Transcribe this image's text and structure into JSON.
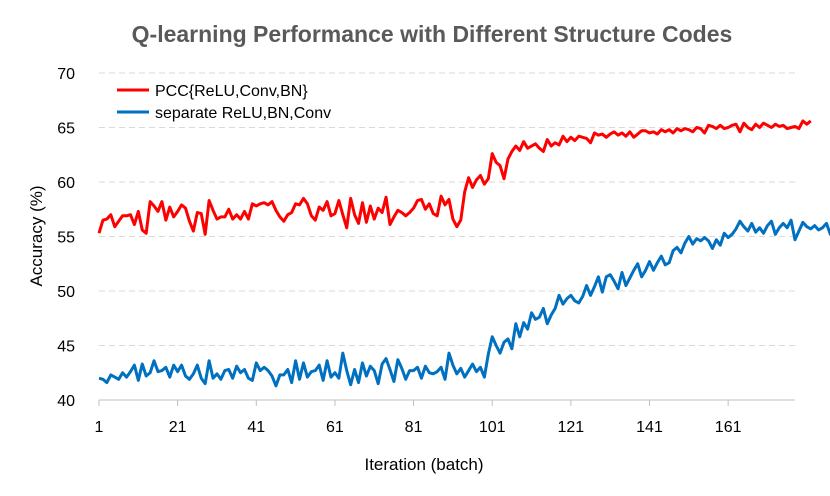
{
  "chart_data": {
    "type": "line",
    "title": "Q-learning Performance with Different Structure Codes",
    "xlabel": "Iteration (batch)",
    "ylabel": "Accuracy (%)",
    "xlim": [
      1,
      178
    ],
    "ylim": [
      40,
      70
    ],
    "xticks": [
      1,
      21,
      41,
      61,
      81,
      101,
      121,
      141,
      161
    ],
    "yticks": [
      40,
      45,
      50,
      55,
      60,
      65,
      70
    ],
    "grid": "horizontal dashed",
    "legend_position": "top-left",
    "series": [
      {
        "name": "PCC{ReLU,Conv,BN}",
        "color": "#ff0000",
        "values": [
          55.3,
          56.5,
          56.6,
          57.0,
          55.9,
          56.4,
          56.9,
          56.9,
          57.0,
          56.1,
          57.3,
          55.6,
          55.3,
          58.2,
          57.8,
          57.3,
          58.2,
          56.5,
          57.7,
          56.8,
          57.3,
          57.9,
          57.6,
          56.4,
          55.5,
          57.2,
          57.1,
          55.2,
          58.3,
          57.4,
          56.6,
          56.8,
          56.8,
          57.5,
          56.6,
          57.0,
          56.6,
          57.3,
          56.6,
          58.0,
          57.8,
          58.0,
          58.1,
          57.9,
          58.2,
          57.4,
          56.8,
          56.4,
          57.0,
          57.2,
          58.0,
          57.9,
          58.5,
          58.0,
          56.9,
          56.5,
          57.7,
          57.4,
          58.2,
          56.9,
          57.1,
          58.3,
          57.0,
          55.8,
          58.5,
          57.0,
          56.2,
          58.1,
          56.3,
          57.8,
          56.6,
          57.6,
          57.2,
          58.6,
          56.1,
          56.8,
          57.4,
          57.2,
          56.9,
          57.2,
          57.6,
          58.3,
          58.4,
          57.5,
          58.0,
          57.1,
          56.9,
          58.7,
          57.9,
          58.4,
          56.6,
          55.9,
          56.5,
          59.1,
          60.4,
          59.5,
          60.2,
          60.6,
          59.8,
          60.3,
          62.6,
          61.8,
          61.5,
          60.3,
          62.1,
          62.8,
          63.3,
          62.9,
          63.7,
          63.1,
          63.3,
          63.5,
          63.1,
          62.8,
          63.9,
          63.3,
          63.6,
          63.4,
          64.2,
          63.7,
          64.1,
          63.8,
          64.2,
          64.1,
          64.0,
          63.6,
          64.5,
          64.3,
          64.4,
          64.1,
          64.4,
          64.6,
          64.3,
          64.5,
          64.2,
          64.6,
          64.1,
          64.4,
          64.7,
          64.7,
          64.5,
          64.6,
          64.4,
          64.8,
          64.6,
          64.8,
          64.5,
          64.9,
          64.7,
          64.9,
          64.8,
          64.6,
          65.0,
          64.9,
          64.5,
          65.2,
          65.1,
          64.9,
          65.2,
          64.9,
          65.0,
          65.2,
          65.3,
          64.6,
          65.4,
          65.0,
          64.8,
          65.3,
          65.0,
          65.4,
          65.2,
          65.0,
          65.3,
          65.1,
          65.2,
          64.9,
          65.0,
          65.1,
          64.9,
          65.6,
          65.3,
          65.6
        ]
      },
      {
        "name": "separate ReLU,BN,Conv",
        "color": "#0070c0",
        "values": [
          42.0,
          41.9,
          41.6,
          42.3,
          42.1,
          41.9,
          42.5,
          42.1,
          42.6,
          43.2,
          41.8,
          43.3,
          42.2,
          42.5,
          43.6,
          42.6,
          42.7,
          43.0,
          42.1,
          43.2,
          42.6,
          43.2,
          42.2,
          41.9,
          42.4,
          43.2,
          42.0,
          41.5,
          43.6,
          42.0,
          42.4,
          41.9,
          42.7,
          42.8,
          42.0,
          43.1,
          42.5,
          42.8,
          42.0,
          41.8,
          43.4,
          42.7,
          43.0,
          42.7,
          42.2,
          41.3,
          42.3,
          42.3,
          42.8,
          41.6,
          43.6,
          41.9,
          43.4,
          42.1,
          42.6,
          42.7,
          43.2,
          41.8,
          43.6,
          42.1,
          42.5,
          42.0,
          44.3,
          42.7,
          41.4,
          42.8,
          41.6,
          43.4,
          42.2,
          43.1,
          42.7,
          41.5,
          43.3,
          43.8,
          42.8,
          41.7,
          43.7,
          42.9,
          41.9,
          42.7,
          42.7,
          43.0,
          42.0,
          43.1,
          42.5,
          42.4,
          42.6,
          43.0,
          41.9,
          44.3,
          43.2,
          42.4,
          42.9,
          42.1,
          42.7,
          43.3,
          42.6,
          43.0,
          42.1,
          44.2,
          45.8,
          45.0,
          44.3,
          45.3,
          45.6,
          44.7,
          47.0,
          45.8,
          47.1,
          46.5,
          48.0,
          47.4,
          47.6,
          48.4,
          47.0,
          47.8,
          48.4,
          49.6,
          48.8,
          49.3,
          49.6,
          49.1,
          48.9,
          49.5,
          50.5,
          49.6,
          50.4,
          51.3,
          49.9,
          51.3,
          51.5,
          50.9,
          50.2,
          51.7,
          50.5,
          51.2,
          51.9,
          52.5,
          51.3,
          51.9,
          52.7,
          51.9,
          52.6,
          53.2,
          52.4,
          52.6,
          53.7,
          54.0,
          53.5,
          54.4,
          55.0,
          54.3,
          54.8,
          54.6,
          54.9,
          54.6,
          53.9,
          54.7,
          54.2,
          55.3,
          54.9,
          55.2,
          55.7,
          56.4,
          55.9,
          55.5,
          56.2,
          55.4,
          55.8,
          55.3,
          56.0,
          56.4,
          55.2,
          55.8,
          56.2,
          55.8,
          56.5,
          54.7,
          55.5,
          56.3,
          55.9,
          55.7,
          56.0,
          55.6,
          55.8,
          56.2,
          55.2,
          55.8,
          55.5,
          54.8
        ]
      }
    ]
  }
}
